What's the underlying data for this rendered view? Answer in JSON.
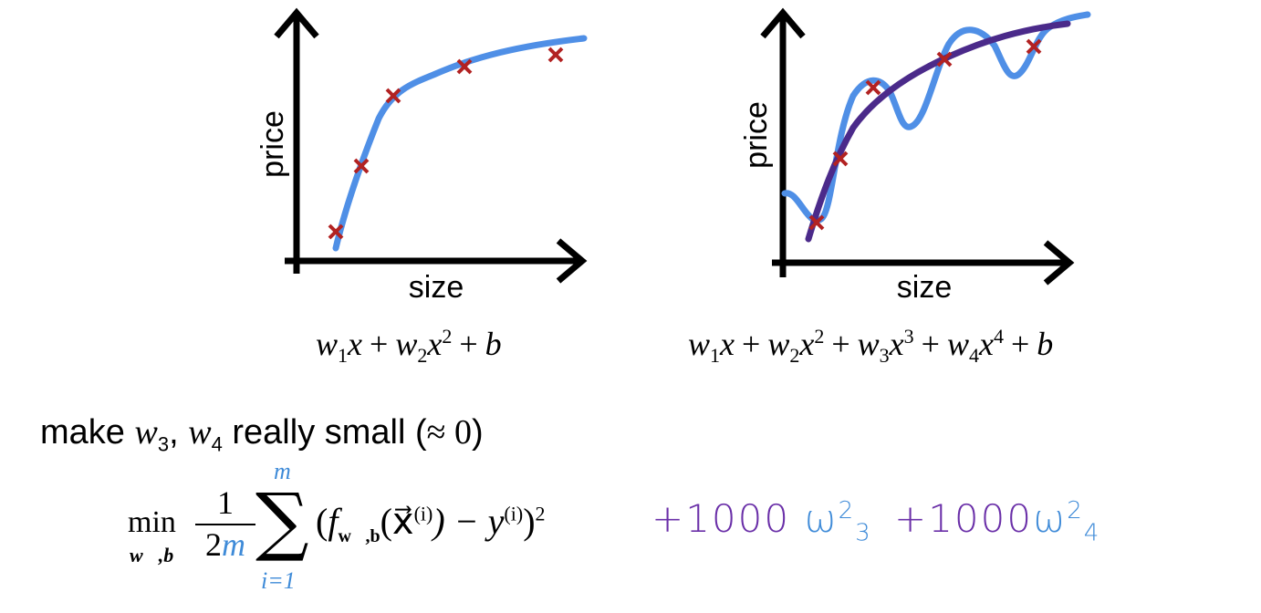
{
  "plots": [
    {
      "ylabel": "price",
      "xlabel": "size",
      "equation": {
        "t1": "w",
        "s1": "1",
        "t2": "x",
        "op1": "+",
        "t3": "w",
        "s2": "2",
        "t4": "x",
        "p1": "2",
        "op2": "+",
        "t5": "b"
      }
    },
    {
      "ylabel": "price",
      "xlabel": "size",
      "equation": {
        "t1": "w",
        "s1": "1",
        "t2": "x",
        "op1": "+",
        "t3": "w",
        "s2": "2",
        "t4": "x",
        "p1": "2",
        "op2": "+",
        "t5": "w",
        "s3": "3",
        "t6": "x",
        "p2": "3",
        "op3": "+",
        "t7": "w",
        "s4": "4",
        "t8": "x",
        "p3": "4",
        "op4": "+",
        "t9": "b"
      }
    }
  ],
  "instruction": {
    "text_before": "make ",
    "w3": "w",
    "w3_sub": "3",
    "comma": ", ",
    "w4": "w",
    "w4_sub": "4",
    "text_after": " really small (",
    "approx": "≈ 0",
    "close": ")"
  },
  "cost": {
    "min": "min",
    "min_sub": "w⃗,b",
    "frac_num": "1",
    "frac_den_a": "2",
    "frac_den_m": "m",
    "sum_top": "m",
    "sum_bot": "i=1",
    "sigma": "∑",
    "body_open": "(",
    "f": "f",
    "f_sub": "w⃗,b",
    "xarg": "(x⃗",
    "xsup": "(i)",
    "minus": ") − y",
    "ysup": "(i)",
    "close": ")",
    "sq": "2",
    "term1_num": "+1000 ",
    "term1_w": "ω",
    "term1_sup": "2",
    "term1_sub": "3",
    "term2_num": "+1000",
    "term2_w": "ω",
    "term2_sup": "2",
    "term2_sub": "4"
  },
  "colors": {
    "fit_curve": "#4f8fe6",
    "smooth_curve": "#4b2a8a",
    "data_marker": "#b22222",
    "handwriting_purple": "#6a2fa8",
    "handwriting_blue": "#3f8bd8"
  }
}
